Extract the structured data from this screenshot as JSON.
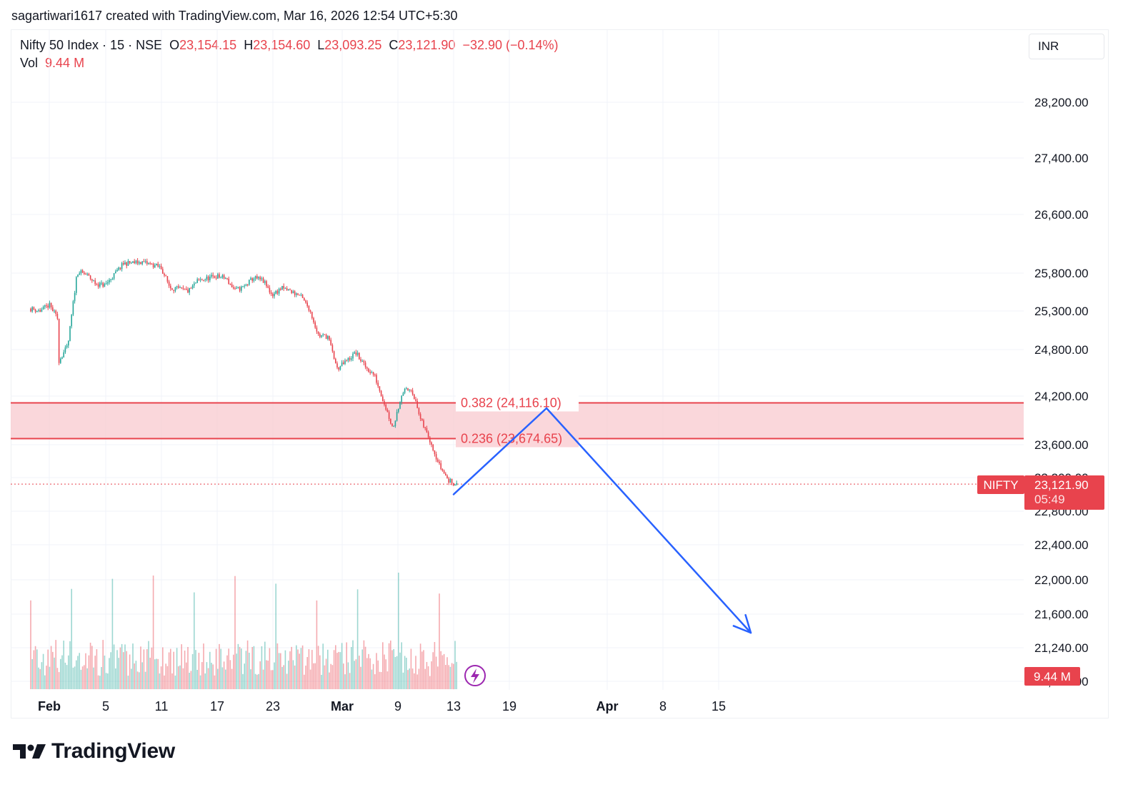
{
  "header": {
    "text": "sagartiwari1617 created with TradingView.com, Mar 16, 2026 12:54 UTC+5:30"
  },
  "legend": {
    "symbol": "Nifty 50 Index · 15 · NSE",
    "open_label": "O",
    "open": "23,154.15",
    "high_label": "H",
    "high": "23,154.60",
    "low_label": "L",
    "low": "23,093.25",
    "close_label": "C",
    "close": "23,121.90",
    "change": "−32.90 (−0.14%)",
    "vol_label": "Vol",
    "vol": "9.44 M"
  },
  "currency": "INR",
  "price_badge": {
    "symbol": "NIFTY",
    "price": "23,121.90",
    "countdown": "05:49"
  },
  "volume_badge": "9.44 M",
  "brand": {
    "name": "TradingView"
  },
  "colors": {
    "down": "#e8434d",
    "up": "#26a69a",
    "projection": "#2962ff",
    "zone_fill": "#f9cdd2"
  },
  "chart_data": {
    "type": "candlestick",
    "symbol": "Nifty 50 Index",
    "interval": "15",
    "exchange": "NSE",
    "y_ticks": [
      {
        "value": 28200,
        "label": "28,200.00"
      },
      {
        "value": 27400,
        "label": "27,400.00"
      },
      {
        "value": 26600,
        "label": "26,600.00"
      },
      {
        "value": 25800,
        "label": "25,800.00"
      },
      {
        "value": 25300,
        "label": "25,300.00"
      },
      {
        "value": 24800,
        "label": "24,800.00"
      },
      {
        "value": 24200,
        "label": "24,200.00"
      },
      {
        "value": 23600,
        "label": "23,600.00"
      },
      {
        "value": 23200,
        "label": "23,200.00"
      },
      {
        "value": 22800,
        "label": "22,800.00"
      },
      {
        "value": 22400,
        "label": "22,400.00"
      },
      {
        "value": 22000,
        "label": "22,000.00"
      },
      {
        "value": 21600,
        "label": "21,600.00"
      },
      {
        "value": 21240,
        "label": "21,240.00"
      },
      {
        "value": 20900,
        "label": "20,900.00"
      }
    ],
    "x_ticks": [
      {
        "label": "Feb",
        "bold": true
      },
      {
        "label": "5",
        "bold": false
      },
      {
        "label": "11",
        "bold": false
      },
      {
        "label": "17",
        "bold": false
      },
      {
        "label": "23",
        "bold": false
      },
      {
        "label": "Mar",
        "bold": true
      },
      {
        "label": "9",
        "bold": false
      },
      {
        "label": "13",
        "bold": false
      },
      {
        "label": "19",
        "bold": false
      },
      {
        "label": "Apr",
        "bold": true
      },
      {
        "label": "8",
        "bold": false
      },
      {
        "label": "15",
        "bold": false
      }
    ],
    "price_path": [
      [
        "2026-01-29",
        25330
      ],
      [
        "2026-01-30",
        25300
      ],
      [
        "2026-01-31",
        25380
      ],
      [
        "2026-02-01",
        25180
      ],
      [
        "2026-02-01",
        24650
      ],
      [
        "2026-02-02",
        24850
      ],
      [
        "2026-02-03",
        25820
      ],
      [
        "2026-02-04",
        25780
      ],
      [
        "2026-02-05",
        25660
      ],
      [
        "2026-02-06",
        25640
      ],
      [
        "2026-02-07",
        25780
      ],
      [
        "2026-02-08",
        25930
      ],
      [
        "2026-02-10",
        25950
      ],
      [
        "2026-02-12",
        25880
      ],
      [
        "2026-02-13",
        25610
      ],
      [
        "2026-02-15",
        25560
      ],
      [
        "2026-02-16",
        25700
      ],
      [
        "2026-02-18",
        25760
      ],
      [
        "2026-02-19",
        25730
      ],
      [
        "2026-02-20",
        25570
      ],
      [
        "2026-02-21",
        25620
      ],
      [
        "2026-02-22",
        25740
      ],
      [
        "2026-02-23",
        25700
      ],
      [
        "2026-02-24",
        25510
      ],
      [
        "2026-02-25",
        25600
      ],
      [
        "2026-02-26",
        25560
      ],
      [
        "2026-02-27",
        25500
      ],
      [
        "2026-02-28",
        25330
      ],
      [
        "2026-03-01",
        24980
      ],
      [
        "2026-03-02",
        24970
      ],
      [
        "2026-03-03",
        24550
      ],
      [
        "2026-03-04",
        24650
      ],
      [
        "2026-03-05",
        24760
      ],
      [
        "2026-03-06",
        24580
      ],
      [
        "2026-03-07",
        24470
      ],
      [
        "2026-03-09",
        23800
      ],
      [
        "2026-03-10",
        24250
      ],
      [
        "2026-03-11",
        24300
      ],
      [
        "2026-03-12",
        23900
      ],
      [
        "2026-03-13",
        23660
      ],
      [
        "2026-03-14",
        23350
      ],
      [
        "2026-03-15",
        23160
      ],
      [
        "2026-03-16",
        23121.9
      ]
    ],
    "volume_max": "9.44 M",
    "current_price": 23121.9,
    "fib_levels": [
      {
        "ratio": 0.382,
        "price": 24116.1,
        "label": "0.382 (24,116.10)"
      },
      {
        "ratio": 0.236,
        "price": 23674.65,
        "label": "0.236 (23,674.65)"
      }
    ],
    "projection": [
      [
        "2026-03-16",
        23000
      ],
      [
        "2026-03-26",
        24050
      ],
      [
        "2026-04-17",
        21400
      ]
    ],
    "grid": true
  }
}
